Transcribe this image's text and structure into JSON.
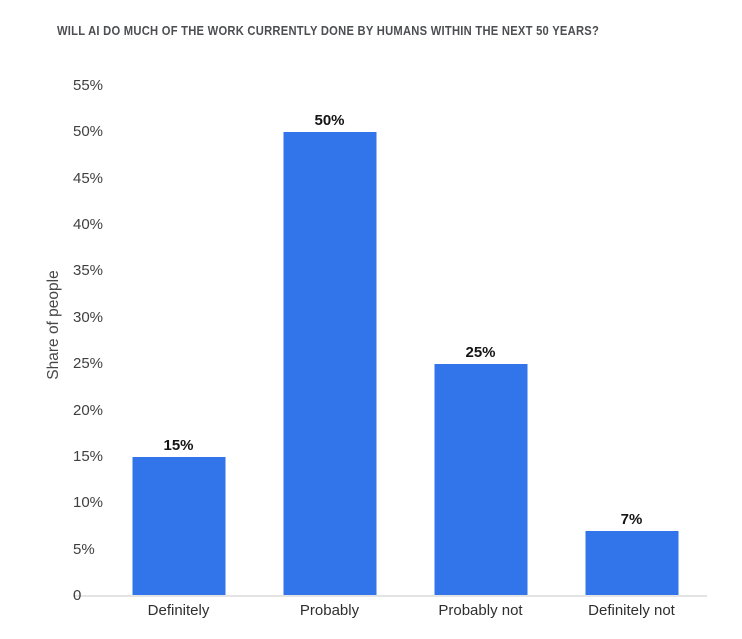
{
  "chart_data": {
    "type": "bar",
    "title": "WILL AI DO MUCH OF THE WORK CURRENTLY DONE BY HUMANS WITHIN THE NEXT 50 YEARS?",
    "categories": [
      "Definitely",
      "Probably",
      "Probably not",
      "Definitely not"
    ],
    "values": [
      15,
      50,
      25,
      7
    ],
    "value_labels": [
      "15%",
      "50%",
      "25%",
      "7%"
    ],
    "xlabel": "",
    "ylabel": "Share of people",
    "ylim": [
      0,
      55
    ],
    "yticks": [
      0,
      5,
      10,
      15,
      20,
      25,
      30,
      35,
      40,
      45,
      50,
      55
    ],
    "ytick_labels": [
      "0",
      "5%",
      "10%",
      "15%",
      "20%",
      "25%",
      "30%",
      "35%",
      "40%",
      "45%",
      "50%",
      "55%"
    ],
    "grid": false,
    "legend": "none",
    "colors": {
      "bar": "#3274e9",
      "title": "#4c4e52",
      "tick_label": "#404040",
      "value_label": "#141414",
      "category_label": "#2e2e2e",
      "axis_line": "#e4e4e4",
      "y_axis_title": "#474747"
    }
  }
}
